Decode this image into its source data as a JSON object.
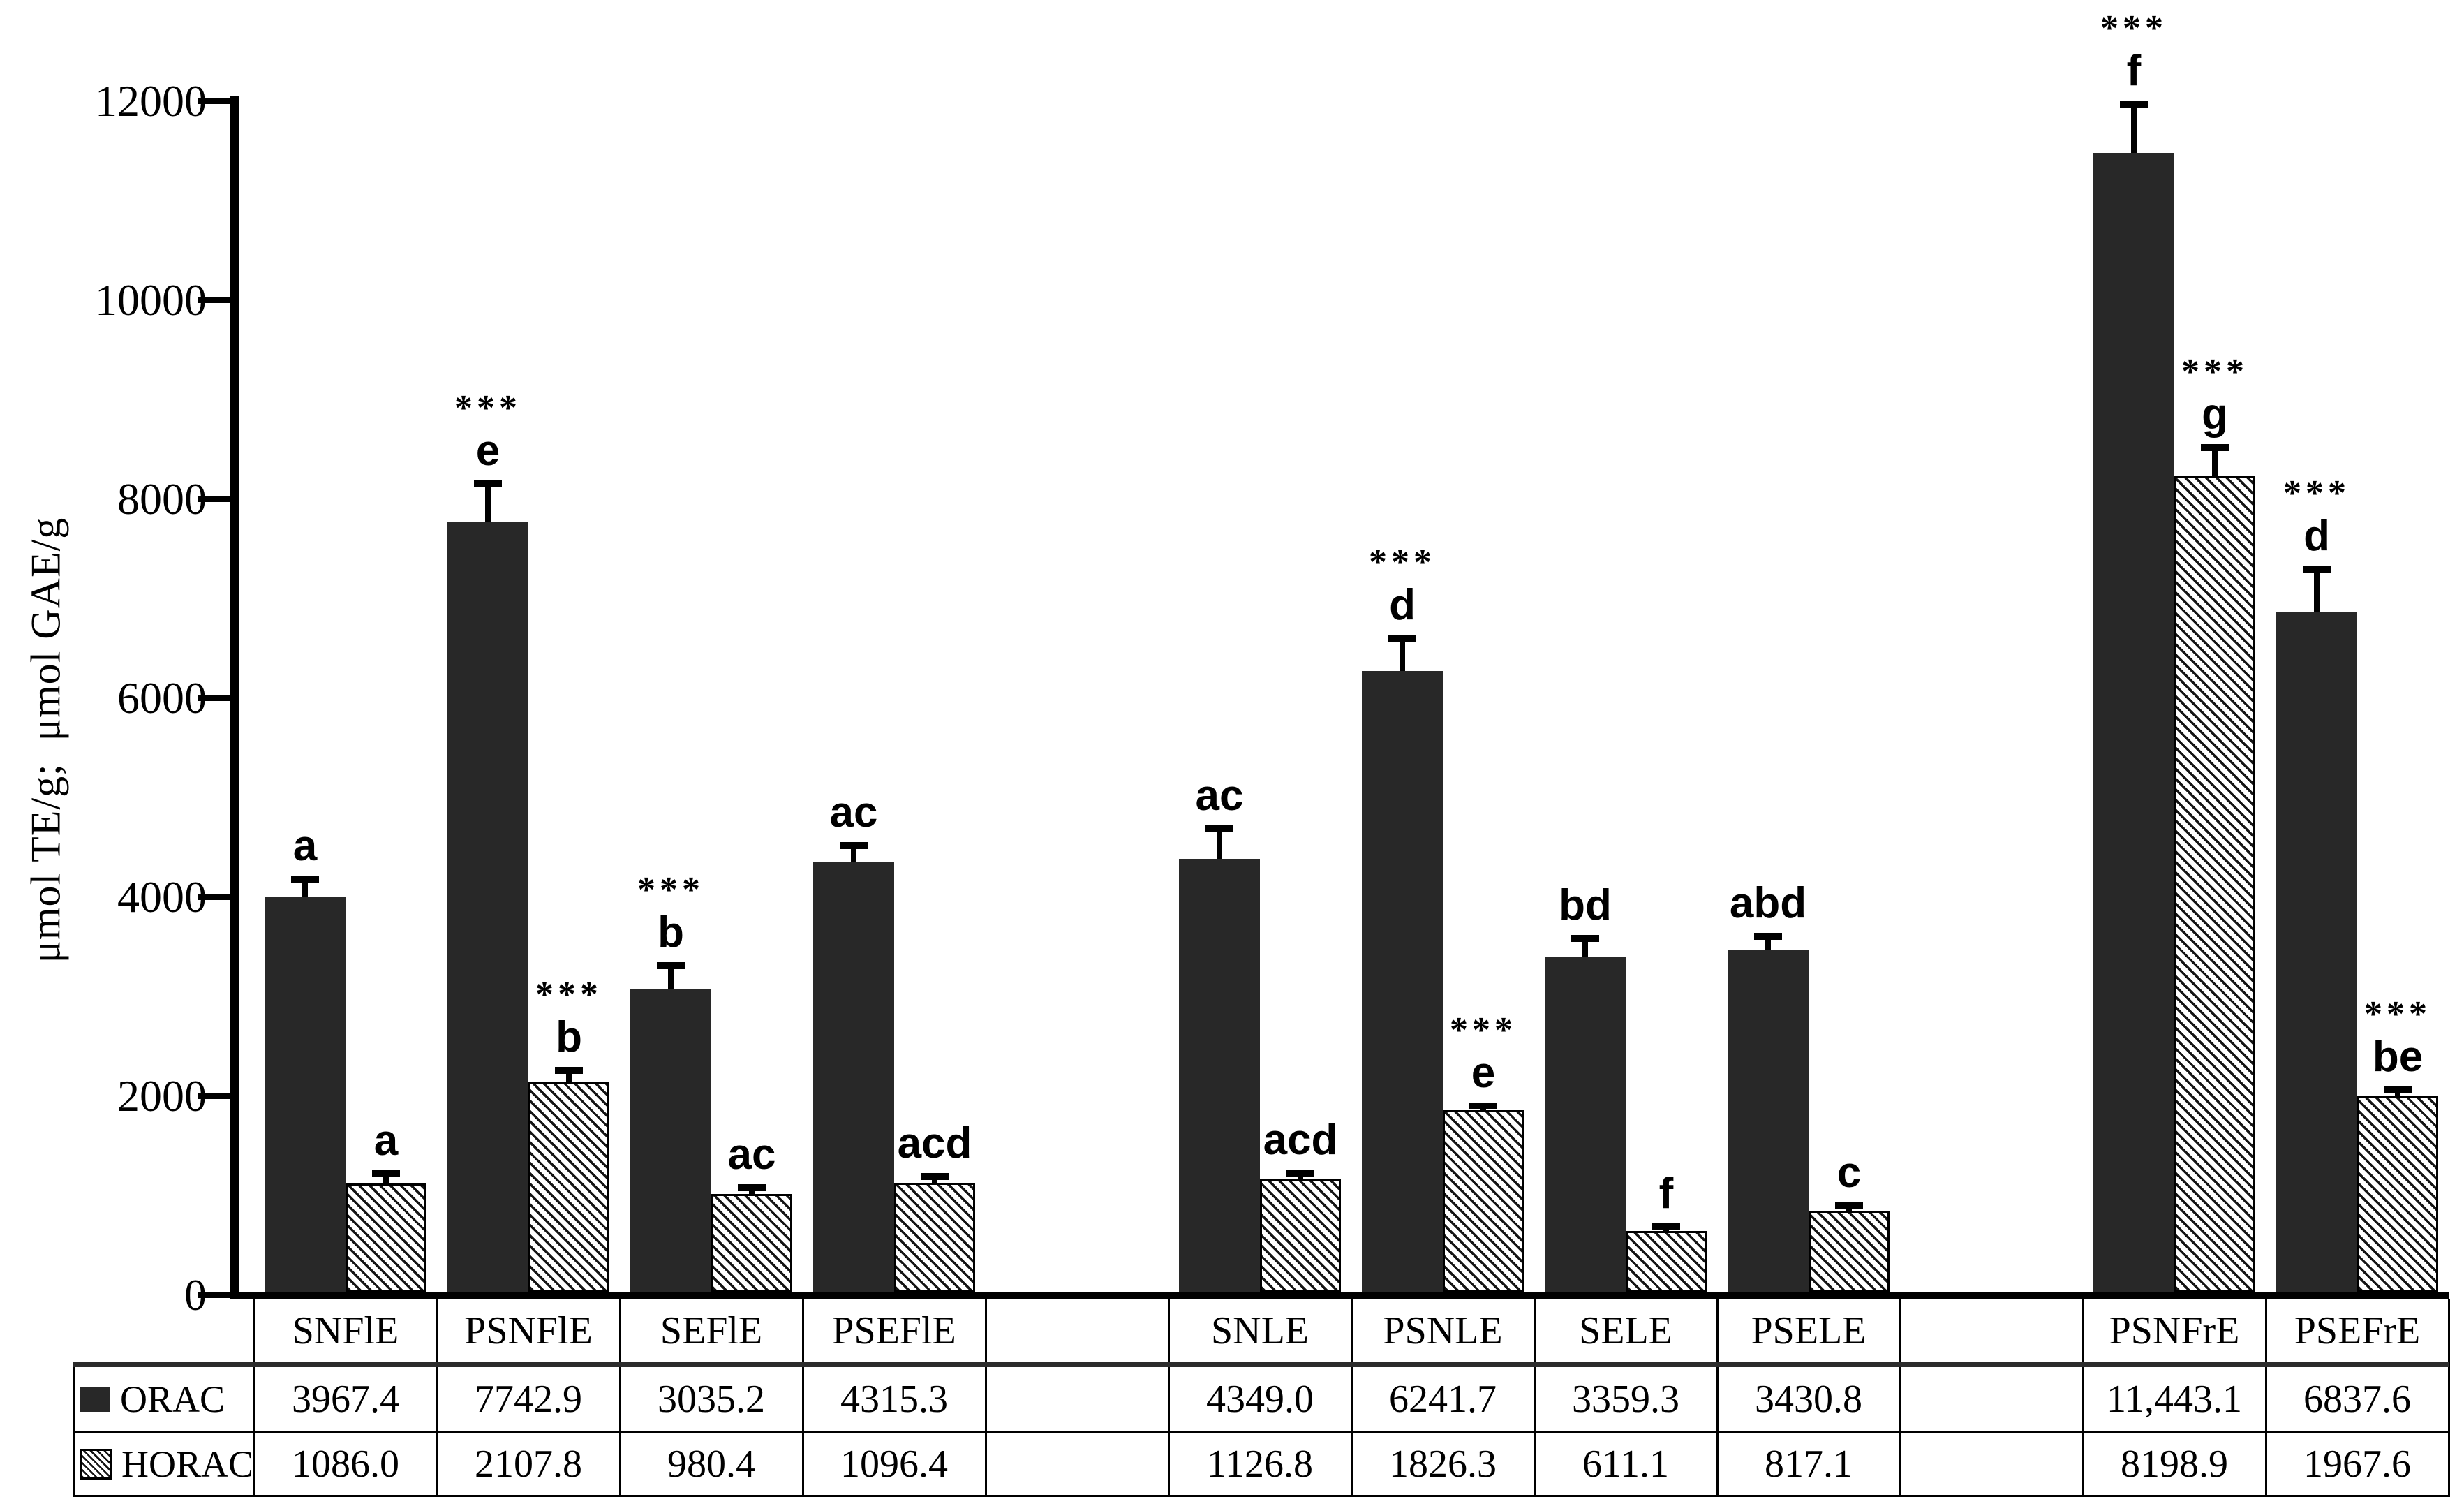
{
  "figure": {
    "background": "#ffffff",
    "bar_color": "#282828",
    "hatch_color": "#141414"
  },
  "chart_data": {
    "type": "bar",
    "title": "",
    "xlabel": "",
    "ylabel": "μmol TE/g;  μmol GAE/g",
    "ylim": [
      0,
      12000
    ],
    "yticks": [
      "0",
      "2000",
      "4000",
      "6000",
      "8000",
      "10000",
      "12000"
    ],
    "grid": false,
    "legend_position": "table-row-headers-left",
    "columns": [
      "SNFlE",
      "PSNFlE",
      "SEFlE",
      "PSEFlE",
      "",
      "SNLE",
      "PSNLE",
      "SELE",
      "PSELE",
      "",
      "PSNFrE",
      "PSEFrE"
    ],
    "series": [
      {
        "name": "ORAC",
        "style": "solid",
        "values": [
          3967.4,
          7742.9,
          3035.2,
          4315.3,
          null,
          4349.0,
          6241.7,
          3359.3,
          3430.8,
          null,
          11443.1,
          6837.6
        ],
        "labels": [
          "3967.4",
          "7742.9",
          "3035.2",
          "4315.3",
          "",
          "4349.0",
          "6241.7",
          "3359.3",
          "3430.8",
          "",
          "11,443.1",
          "6837.6"
        ],
        "errors": [
          180,
          380,
          240,
          170,
          null,
          300,
          330,
          190,
          140,
          null,
          490,
          430
        ],
        "stars": [
          "",
          "***",
          "***",
          "",
          "",
          "",
          "***",
          "",
          "",
          "",
          "***",
          "***"
        ],
        "letters": [
          "a",
          "e",
          "b",
          "ac",
          "",
          "ac",
          "d",
          "bd",
          "abd",
          "",
          "f",
          "d"
        ]
      },
      {
        "name": "HORAC",
        "style": "hatched",
        "values": [
          1086.0,
          2107.8,
          980.4,
          1096.4,
          null,
          1126.8,
          1826.3,
          611.1,
          817.1,
          null,
          8198.9,
          1967.6
        ],
        "labels": [
          "1086.0",
          "2107.8",
          "980.4",
          "1096.4",
          "",
          "1126.8",
          "1826.3",
          "611.1",
          "817.1",
          "",
          "8198.9",
          "1967.6"
        ],
        "errors": [
          100,
          120,
          60,
          60,
          null,
          60,
          40,
          40,
          50,
          null,
          290,
          60
        ],
        "stars": [
          "",
          "***",
          "",
          "",
          "",
          "",
          "***",
          "",
          "",
          "",
          "***",
          "***"
        ],
        "letters": [
          "a",
          "b",
          "ac",
          "acd",
          "",
          "acd",
          "e",
          "f",
          "c",
          "",
          "g",
          "be"
        ]
      }
    ]
  }
}
